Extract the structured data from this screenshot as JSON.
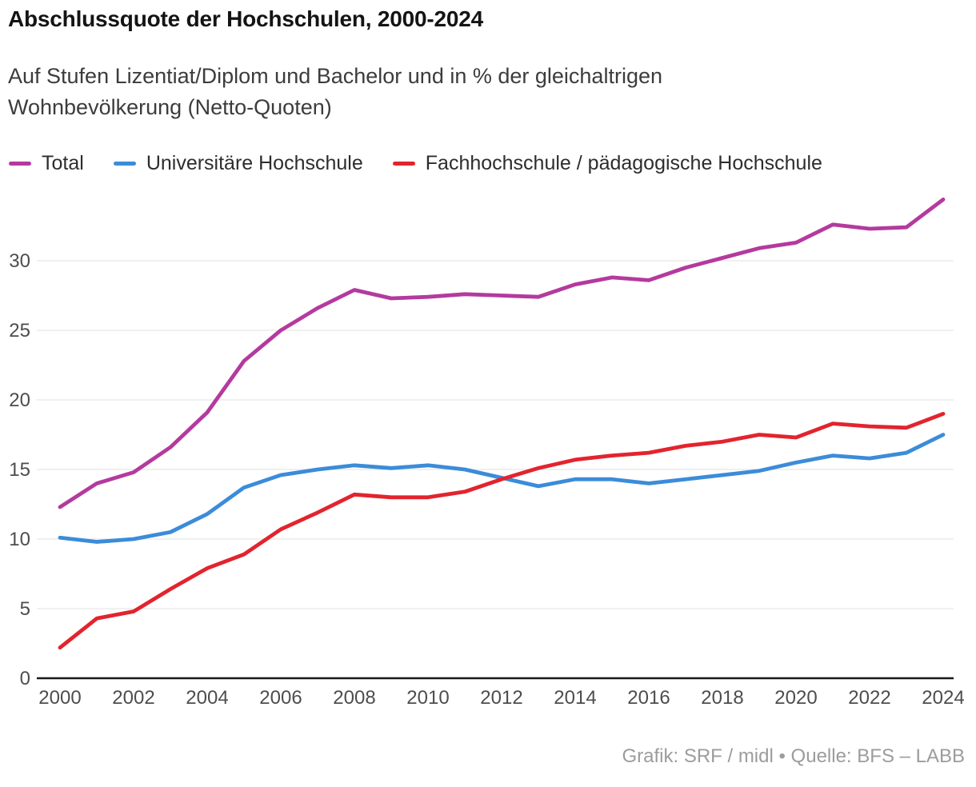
{
  "header": {
    "title": "Abschlussquote der Hochschulen, 2000-2024",
    "subtitle_lines": [
      "Auf Stufen Lizentiat/Diplom und Bachelor und in % der gleichaltrigen",
      "Wohnbevölkerung (Netto-Quoten)"
    ]
  },
  "legend": {
    "items": [
      {
        "id": "total",
        "label": "Total",
        "color": "#b43a9e"
      },
      {
        "id": "universitaere-hochschule",
        "label": "Universitäre Hochschule",
        "color": "#3b8cd9"
      },
      {
        "id": "fachhochschule-paedagogische-hochschule",
        "label": "Fachhochschule / pädagogische Hochschule",
        "color": "#e2242e"
      }
    ]
  },
  "chart_data": {
    "type": "line",
    "title": "Abschlussquote der Hochschulen, 2000-2024",
    "subtitle": "Auf Stufen Lizentiat/Diplom und Bachelor und in % der gleichaltrigen Wohnbevölkerung (Netto-Quoten)",
    "x": [
      2000,
      2001,
      2002,
      2003,
      2004,
      2005,
      2006,
      2007,
      2008,
      2009,
      2010,
      2011,
      2012,
      2013,
      2014,
      2015,
      2016,
      2017,
      2018,
      2019,
      2020,
      2021,
      2022,
      2023,
      2024
    ],
    "series": [
      {
        "id": "total",
        "name": "Total",
        "color": "#b43a9e",
        "values": [
          12.3,
          14.0,
          14.8,
          16.6,
          19.1,
          22.8,
          25.0,
          26.6,
          27.9,
          27.3,
          27.4,
          27.6,
          27.5,
          27.4,
          28.3,
          28.8,
          28.6,
          29.5,
          30.2,
          30.9,
          31.3,
          32.6,
          32.3,
          32.4,
          34.4
        ]
      },
      {
        "id": "universitaere-hochschule",
        "name": "Universitäre Hochschule",
        "color": "#3b8cd9",
        "values": [
          10.1,
          9.8,
          10.0,
          10.5,
          11.8,
          13.7,
          14.6,
          15.0,
          15.3,
          15.1,
          15.3,
          15.0,
          14.4,
          13.8,
          14.3,
          14.3,
          14.0,
          14.3,
          14.6,
          14.9,
          15.5,
          16.0,
          15.8,
          16.2,
          17.5
        ]
      },
      {
        "id": "fachhochschule-paedagogische-hochschule",
        "name": "Fachhochschule / pädagogische Hochschule",
        "color": "#e2242e",
        "values": [
          2.2,
          4.3,
          4.8,
          6.4,
          7.9,
          8.9,
          10.7,
          11.9,
          13.2,
          13.0,
          13.0,
          13.4,
          14.3,
          15.1,
          15.7,
          16.0,
          16.2,
          16.7,
          17.0,
          17.5,
          17.3,
          18.3,
          18.1,
          18.0,
          19.0
        ]
      }
    ],
    "xticks": [
      2000,
      2002,
      2004,
      2006,
      2008,
      2010,
      2012,
      2014,
      2016,
      2018,
      2020,
      2022,
      2024
    ],
    "yticks": [
      0,
      5,
      10,
      15,
      20,
      25,
      30
    ],
    "ylim": [
      0,
      35
    ],
    "xlabel": "",
    "ylabel": "",
    "grid": true,
    "legend_position": "top"
  },
  "footer": {
    "credit": "Grafik: SRF / midl • Quelle: BFS – LABB"
  },
  "style": {
    "gridline_color": "#e8e8e8",
    "axis_color": "#191919",
    "tick_label_color": "#4d4d4d",
    "line_width": 4.8
  }
}
